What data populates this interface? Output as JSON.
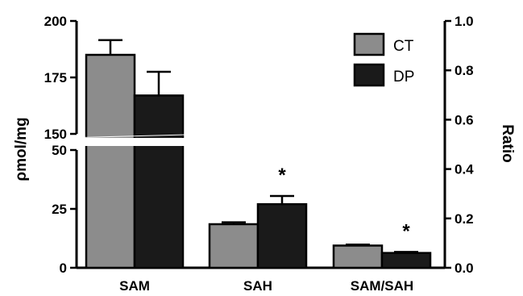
{
  "chart_data": {
    "type": "bar",
    "categories": [
      "SAM",
      "SAH",
      "SAM/SAH"
    ],
    "series": [
      {
        "name": "CT",
        "color": "#8c8c8c",
        "values": [
          185,
          18.5,
          0.09
        ],
        "errors": [
          6.5,
          0.8,
          0.004
        ],
        "axis": [
          "left",
          "left",
          "right"
        ]
      },
      {
        "name": "DP",
        "color": "#1a1a1a",
        "values": [
          167,
          27,
          0.06
        ],
        "errors": [
          10.5,
          3.5,
          0.004
        ],
        "axis": [
          "left",
          "left",
          "right"
        ]
      }
    ],
    "significance": [
      {
        "category": "SAH",
        "series": "DP",
        "label": "*"
      },
      {
        "category": "SAM/SAH",
        "series": "DP",
        "label": "*"
      }
    ],
    "y_left": {
      "label": "ρmol/mg",
      "broken": true,
      "lower_range": [
        0,
        50
      ],
      "upper_range": [
        150,
        200
      ],
      "lower_ticks": [
        "0",
        "25",
        "50"
      ],
      "upper_ticks": [
        "150",
        "175",
        "200"
      ]
    },
    "y_right": {
      "label": "Ratio",
      "range": [
        0,
        1.0
      ],
      "ticks": [
        "0.0",
        "0.2",
        "0.4",
        "0.6",
        "0.8",
        "1.0"
      ]
    },
    "legend": {
      "position": "top-right",
      "entries": [
        "CT",
        "DP"
      ]
    },
    "grid": false
  }
}
